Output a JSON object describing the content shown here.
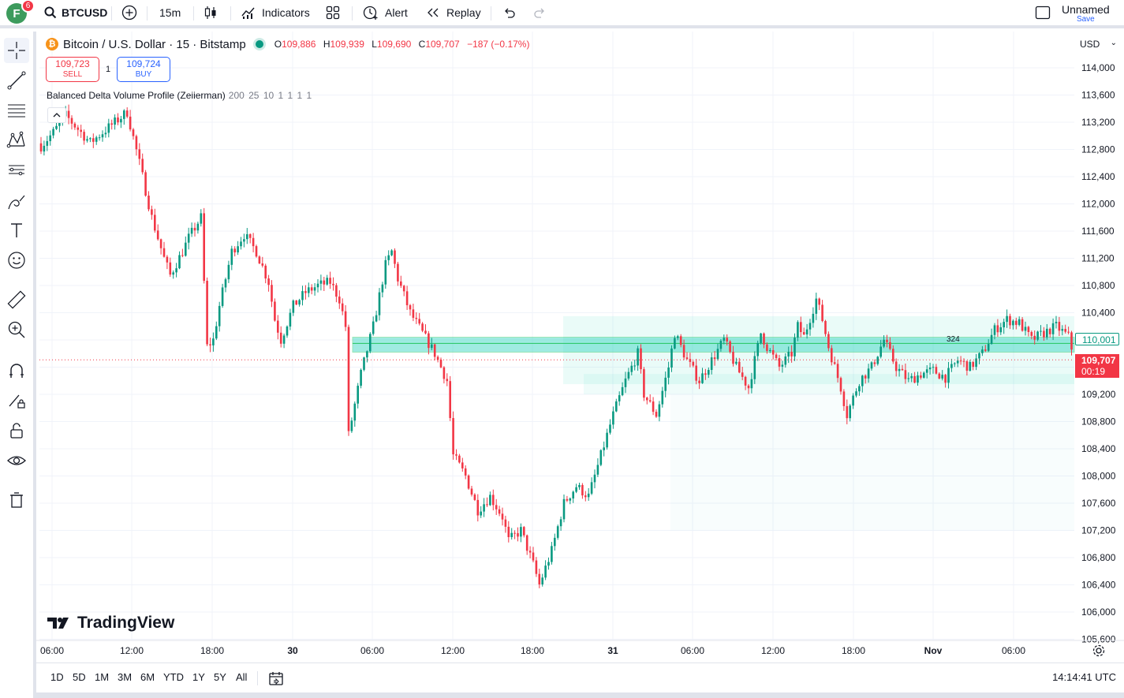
{
  "toolbar": {
    "avatar_letter": "F",
    "notification_count": "6",
    "symbol": "BTCUSD",
    "interval": "15m",
    "indicators_label": "Indicators",
    "alert_label": "Alert",
    "replay_label": "Replay",
    "layout_name": "Unnamed",
    "save_label": "Save",
    "icons": [
      "search-icon",
      "add-symbol-icon",
      "candles-icon",
      "indicators-icon",
      "layouts-grid-icon",
      "alert-icon",
      "replay-icon",
      "undo-icon",
      "redo-icon",
      "layout-box-icon"
    ]
  },
  "left_tools": [
    "crosshair-icon",
    "trend-line-icon",
    "fib-icon",
    "pattern-icon",
    "forecast-icon",
    "brush-icon",
    "text-icon",
    "emoji-icon",
    "ruler-icon",
    "zoom-in-icon",
    "magnet-icon",
    "lock-drawing-icon",
    "lock-icon",
    "eye-icon",
    "trash-icon"
  ],
  "legend": {
    "coin_letter": "₿",
    "title": "Bitcoin / U.S. Dollar · 15 · Bitstamp",
    "o_key": "O",
    "o_val": "109,886",
    "h_key": "H",
    "h_val": "109,939",
    "l_key": "L",
    "l_val": "109,690",
    "c_key": "C",
    "c_val": "109,707",
    "change": "−187 (−0.17%)"
  },
  "trade": {
    "sell_price": "109,723",
    "sell_label": "SELL",
    "qty": "1",
    "buy_price": "109,724",
    "buy_label": "BUY"
  },
  "indicator": {
    "name": "Balanced Delta Volume Profile (Zeiierman)",
    "params": "200 25 10 1 1 1 1"
  },
  "price_axis": {
    "currency": "USD",
    "line_tag": "110,001",
    "last_price": "109,707",
    "countdown": "00:19"
  },
  "volume_profile_label": "324",
  "logo_text": "TradingView",
  "bottom": {
    "ranges": [
      "1D",
      "5D",
      "1M",
      "3M",
      "6M",
      "YTD",
      "1Y",
      "5Y",
      "All"
    ],
    "clock": "14:14:41 UTC"
  },
  "colors": {
    "up": "#089981",
    "down": "#f23645",
    "accent": "#2962ff",
    "profile": "#2dd4bf"
  },
  "chart_data": {
    "type": "candlestick",
    "y_ticks": [
      "114,000",
      "113,600",
      "113,200",
      "112,800",
      "112,400",
      "112,000",
      "111,600",
      "111,200",
      "110,800",
      "110,400",
      "110,000",
      "109,600",
      "109,200",
      "108,800",
      "108,400",
      "108,000",
      "107,600",
      "107,200",
      "106,800",
      "106,400",
      "106,000",
      "105,600"
    ],
    "x_ticks": [
      "06:00",
      "12:00",
      "18:00",
      "30",
      "06:00",
      "12:00",
      "18:00",
      "31",
      "06:00",
      "12:00",
      "18:00",
      "Nov",
      "06:00"
    ],
    "ylim": [
      105600,
      114200
    ],
    "close_path": [
      [
        0,
        112850
      ],
      [
        4,
        113050
      ],
      [
        8,
        113300
      ],
      [
        12,
        113100
      ],
      [
        16,
        112900
      ],
      [
        20,
        113050
      ],
      [
        24,
        113200
      ],
      [
        28,
        113350
      ],
      [
        32,
        112600
      ],
      [
        36,
        111800
      ],
      [
        40,
        111200
      ],
      [
        42,
        110950
      ],
      [
        46,
        111300
      ],
      [
        48,
        111500
      ],
      [
        52,
        111800
      ],
      [
        54,
        109900
      ],
      [
        56,
        110000
      ],
      [
        58,
        110500
      ],
      [
        62,
        111300
      ],
      [
        66,
        111550
      ],
      [
        70,
        111300
      ],
      [
        74,
        110850
      ],
      [
        76,
        110300
      ],
      [
        78,
        110000
      ],
      [
        82,
        110500
      ],
      [
        86,
        110700
      ],
      [
        90,
        110800
      ],
      [
        94,
        110850
      ],
      [
        97,
        110600
      ],
      [
        99,
        110200
      ],
      [
        100,
        108600
      ],
      [
        104,
        109500
      ],
      [
        108,
        110200
      ],
      [
        112,
        111100
      ],
      [
        114,
        111300
      ],
      [
        116,
        110900
      ],
      [
        120,
        110400
      ],
      [
        124,
        110100
      ],
      [
        128,
        109800
      ],
      [
        132,
        109400
      ],
      [
        134,
        108300
      ],
      [
        138,
        108000
      ],
      [
        142,
        107500
      ],
      [
        146,
        107700
      ],
      [
        150,
        107400
      ],
      [
        152,
        107050
      ],
      [
        156,
        107200
      ],
      [
        160,
        106700
      ],
      [
        162,
        106400
      ],
      [
        166,
        106900
      ],
      [
        170,
        107600
      ],
      [
        174,
        107850
      ],
      [
        178,
        107700
      ],
      [
        182,
        108300
      ],
      [
        186,
        108900
      ],
      [
        190,
        109400
      ],
      [
        194,
        109800
      ],
      [
        196,
        109200
      ],
      [
        200,
        108900
      ],
      [
        204,
        109600
      ],
      [
        206,
        110100
      ],
      [
        210,
        109700
      ],
      [
        214,
        109400
      ],
      [
        218,
        109700
      ],
      [
        222,
        110000
      ],
      [
        226,
        109600
      ],
      [
        230,
        109300
      ],
      [
        234,
        110100
      ],
      [
        236,
        109900
      ],
      [
        240,
        109600
      ],
      [
        244,
        109800
      ],
      [
        246,
        110200
      ],
      [
        248,
        110050
      ],
      [
        252,
        110600
      ],
      [
        254,
        110300
      ],
      [
        256,
        109900
      ],
      [
        258,
        109600
      ],
      [
        260,
        109300
      ],
      [
        262,
        108900
      ],
      [
        266,
        109400
      ],
      [
        270,
        109600
      ],
      [
        274,
        110000
      ],
      [
        278,
        109600
      ],
      [
        282,
        109400
      ],
      [
        286,
        109500
      ],
      [
        290,
        109550
      ],
      [
        294,
        109450
      ],
      [
        298,
        109700
      ],
      [
        302,
        109600
      ],
      [
        306,
        109800
      ],
      [
        310,
        110150
      ],
      [
        314,
        110300
      ],
      [
        318,
        110250
      ],
      [
        322,
        110000
      ],
      [
        326,
        110100
      ],
      [
        330,
        110200
      ],
      [
        334,
        110050
      ],
      [
        336,
        109707
      ]
    ],
    "volume_profile": {
      "poc_low": 109800,
      "poc_high": 110000,
      "band_low": 109350,
      "band_high": 110350
    }
  }
}
